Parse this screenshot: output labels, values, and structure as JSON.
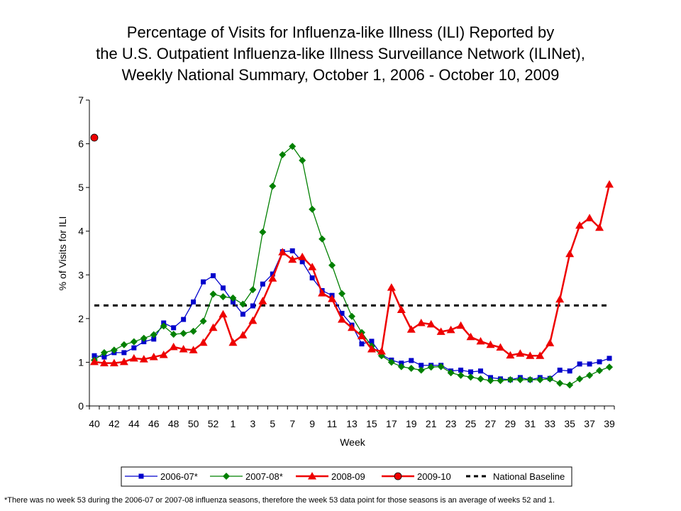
{
  "chart_data": {
    "type": "line",
    "title_lines": [
      "Percentage of Visits for Influenza-like Illness (ILI) Reported by",
      "the U.S. Outpatient Influenza-like Illness Surveillance Network (ILINet),",
      "Weekly National Summary, October 1, 2006 - October 10, 2009"
    ],
    "xlabel": "Week",
    "ylabel": "% of Visits for ILI",
    "ylim": [
      0,
      7
    ],
    "yticks": [
      0,
      1,
      2,
      3,
      4,
      5,
      6,
      7
    ],
    "x_weeks": [
      40,
      41,
      42,
      43,
      44,
      45,
      46,
      47,
      48,
      49,
      50,
      51,
      52,
      53,
      1,
      2,
      3,
      4,
      5,
      6,
      7,
      8,
      9,
      10,
      11,
      12,
      13,
      14,
      15,
      16,
      17,
      18,
      19,
      20,
      21,
      22,
      23,
      24,
      25,
      26,
      27,
      28,
      29,
      30,
      31,
      32,
      33,
      34,
      35,
      36,
      37,
      38,
      39
    ],
    "x_tick_labels": [
      "40",
      "42",
      "44",
      "46",
      "48",
      "50",
      "52",
      "1",
      "3",
      "5",
      "7",
      "9",
      "11",
      "13",
      "15",
      "17",
      "19",
      "21",
      "23",
      "25",
      "27",
      "29",
      "31",
      "33",
      "35",
      "37",
      "39"
    ],
    "series": [
      {
        "name": "2006-07*",
        "color": "#0000cc",
        "marker": "square",
        "values": [
          1.15,
          1.12,
          1.22,
          1.22,
          1.33,
          1.47,
          1.53,
          1.9,
          1.79,
          1.98,
          2.38,
          2.84,
          2.98,
          2.7,
          2.38,
          2.1,
          2.29,
          2.79,
          3.02,
          3.53,
          3.55,
          3.3,
          2.93,
          2.64,
          2.53,
          2.12,
          1.85,
          1.42,
          1.48,
          1.17,
          1.05,
          0.98,
          1.04,
          0.93,
          0.93,
          0.93,
          0.8,
          0.82,
          0.78,
          0.8,
          0.65,
          0.62,
          0.6,
          0.65,
          0.6,
          0.65,
          0.63,
          0.82,
          0.8,
          0.96,
          0.96,
          1.01,
          1.09
        ]
      },
      {
        "name": "2007-08*",
        "color": "#008000",
        "marker": "diamond",
        "values": [
          1.05,
          1.22,
          1.28,
          1.4,
          1.47,
          1.55,
          1.63,
          1.83,
          1.64,
          1.66,
          1.71,
          1.94,
          2.56,
          2.5,
          2.47,
          2.33,
          2.66,
          3.98,
          5.03,
          5.75,
          5.94,
          5.62,
          4.5,
          3.82,
          3.22,
          2.57,
          2.05,
          1.68,
          1.37,
          1.15,
          1.0,
          0.9,
          0.86,
          0.82,
          0.89,
          0.9,
          0.76,
          0.7,
          0.66,
          0.62,
          0.58,
          0.58,
          0.6,
          0.6,
          0.6,
          0.6,
          0.62,
          0.52,
          0.48,
          0.62,
          0.7,
          0.81,
          0.89
        ]
      },
      {
        "name": "2008-09",
        "color": "#ee0000",
        "marker": "triangle",
        "values": [
          1.01,
          0.98,
          0.98,
          1.01,
          1.09,
          1.07,
          1.12,
          1.17,
          1.35,
          1.3,
          1.28,
          1.45,
          1.79,
          2.1,
          1.45,
          1.62,
          1.95,
          2.4,
          2.92,
          3.52,
          3.35,
          3.41,
          3.18,
          2.58,
          2.45,
          1.98,
          1.79,
          1.6,
          1.3,
          1.25,
          2.71,
          2.2,
          1.75,
          1.9,
          1.87,
          1.7,
          1.74,
          1.84,
          1.58,
          1.48,
          1.4,
          1.34,
          1.16,
          1.2,
          1.15,
          1.15,
          1.44,
          2.44,
          3.48,
          4.13,
          4.3,
          4.08,
          5.07
        ]
      },
      {
        "name": "2009-10",
        "color": "#ee0000",
        "marker": "circle",
        "x_week": 40,
        "values": [
          6.14
        ]
      }
    ],
    "baseline": {
      "name": "National Baseline",
      "value": 2.3,
      "color": "#000000"
    },
    "legend_position": "bottom",
    "footnote": "*There was no week 53 during the 2006-07 or 2007-08 influenza seasons, therefore the week 53 data point for those seasons is an average of weeks 52 and 1."
  }
}
